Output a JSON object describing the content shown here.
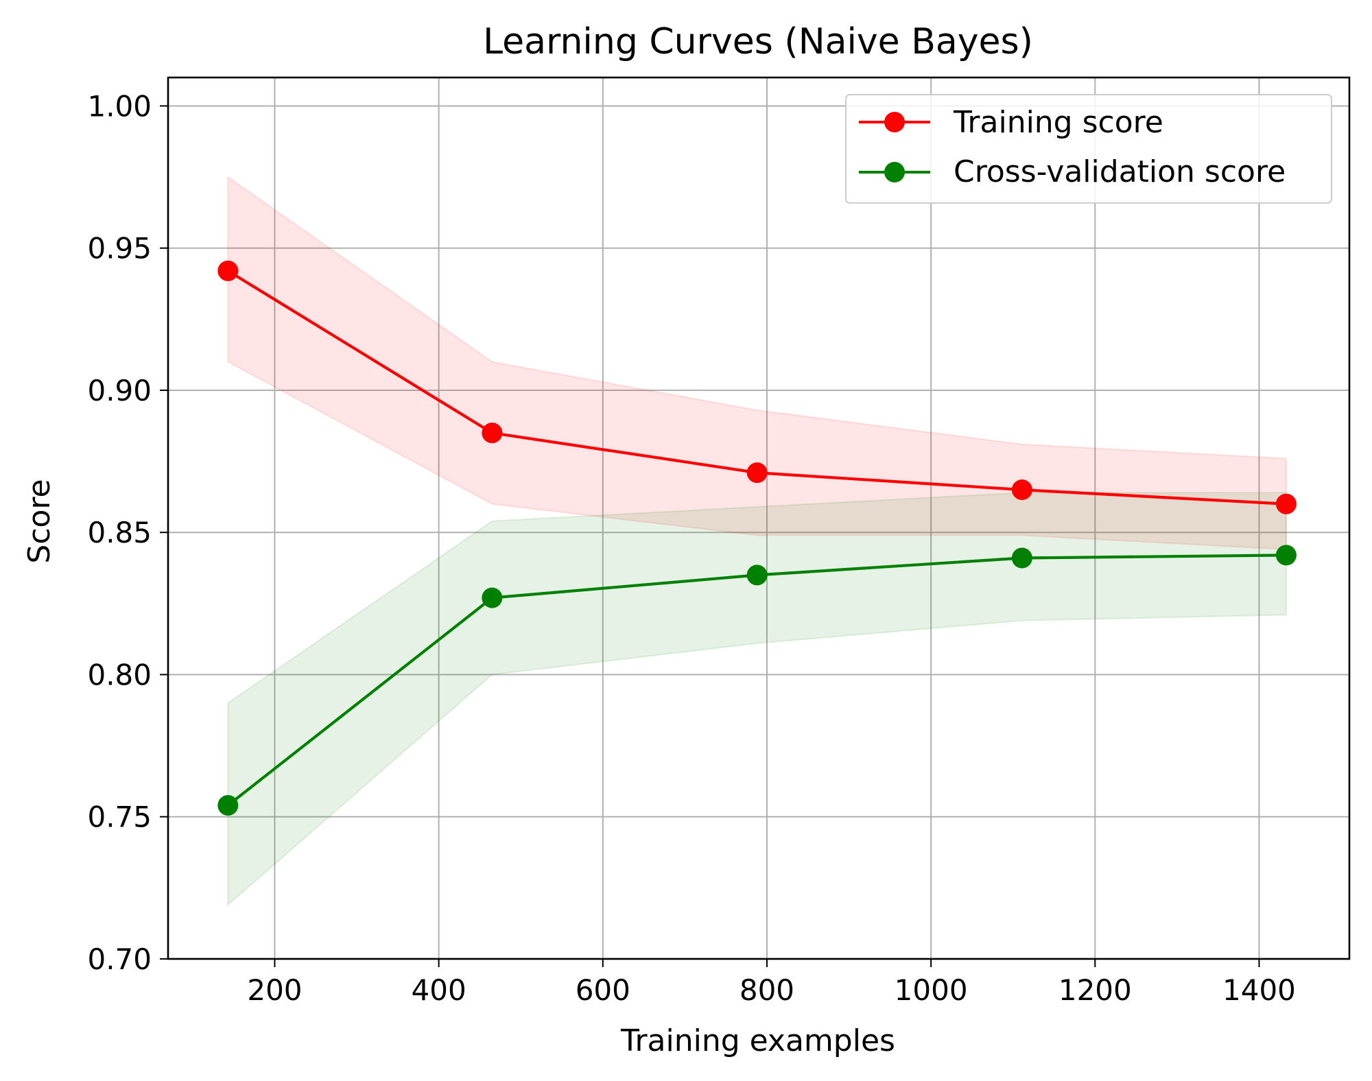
{
  "chart_data": {
    "type": "line",
    "title": "Learning Curves (Naive Bayes)",
    "xlabel": "Training examples",
    "ylabel": "Score",
    "xlim": [
      70,
      1510
    ],
    "ylim": [
      0.7,
      1.01
    ],
    "xticks": [
      200,
      400,
      600,
      800,
      1000,
      1200,
      1400
    ],
    "xtick_labels": [
      "200",
      "400",
      "600",
      "800",
      "1000",
      "1200",
      "1400"
    ],
    "yticks": [
      0.7,
      0.75,
      0.8,
      0.85,
      0.9,
      0.95,
      1.0
    ],
    "ytick_labels": [
      "0.70",
      "0.75",
      "0.80",
      "0.85",
      "0.90",
      "0.95",
      "1.00"
    ],
    "grid": true,
    "legend_position": "top-right",
    "x": [
      143,
      465,
      788,
      1111,
      1433
    ],
    "series": [
      {
        "name": "Training score",
        "color": "#ff0000",
        "band_color": "#ff0000",
        "values": [
          0.942,
          0.885,
          0.871,
          0.865,
          0.86
        ],
        "upper": [
          0.975,
          0.91,
          0.893,
          0.881,
          0.876
        ],
        "lower": [
          0.91,
          0.86,
          0.849,
          0.849,
          0.844
        ]
      },
      {
        "name": "Cross-validation score",
        "color": "#008000",
        "band_color": "#008000",
        "values": [
          0.754,
          0.827,
          0.835,
          0.841,
          0.842
        ],
        "upper": [
          0.79,
          0.854,
          0.859,
          0.864,
          0.864
        ],
        "lower": [
          0.719,
          0.8,
          0.811,
          0.819,
          0.821
        ]
      }
    ]
  }
}
